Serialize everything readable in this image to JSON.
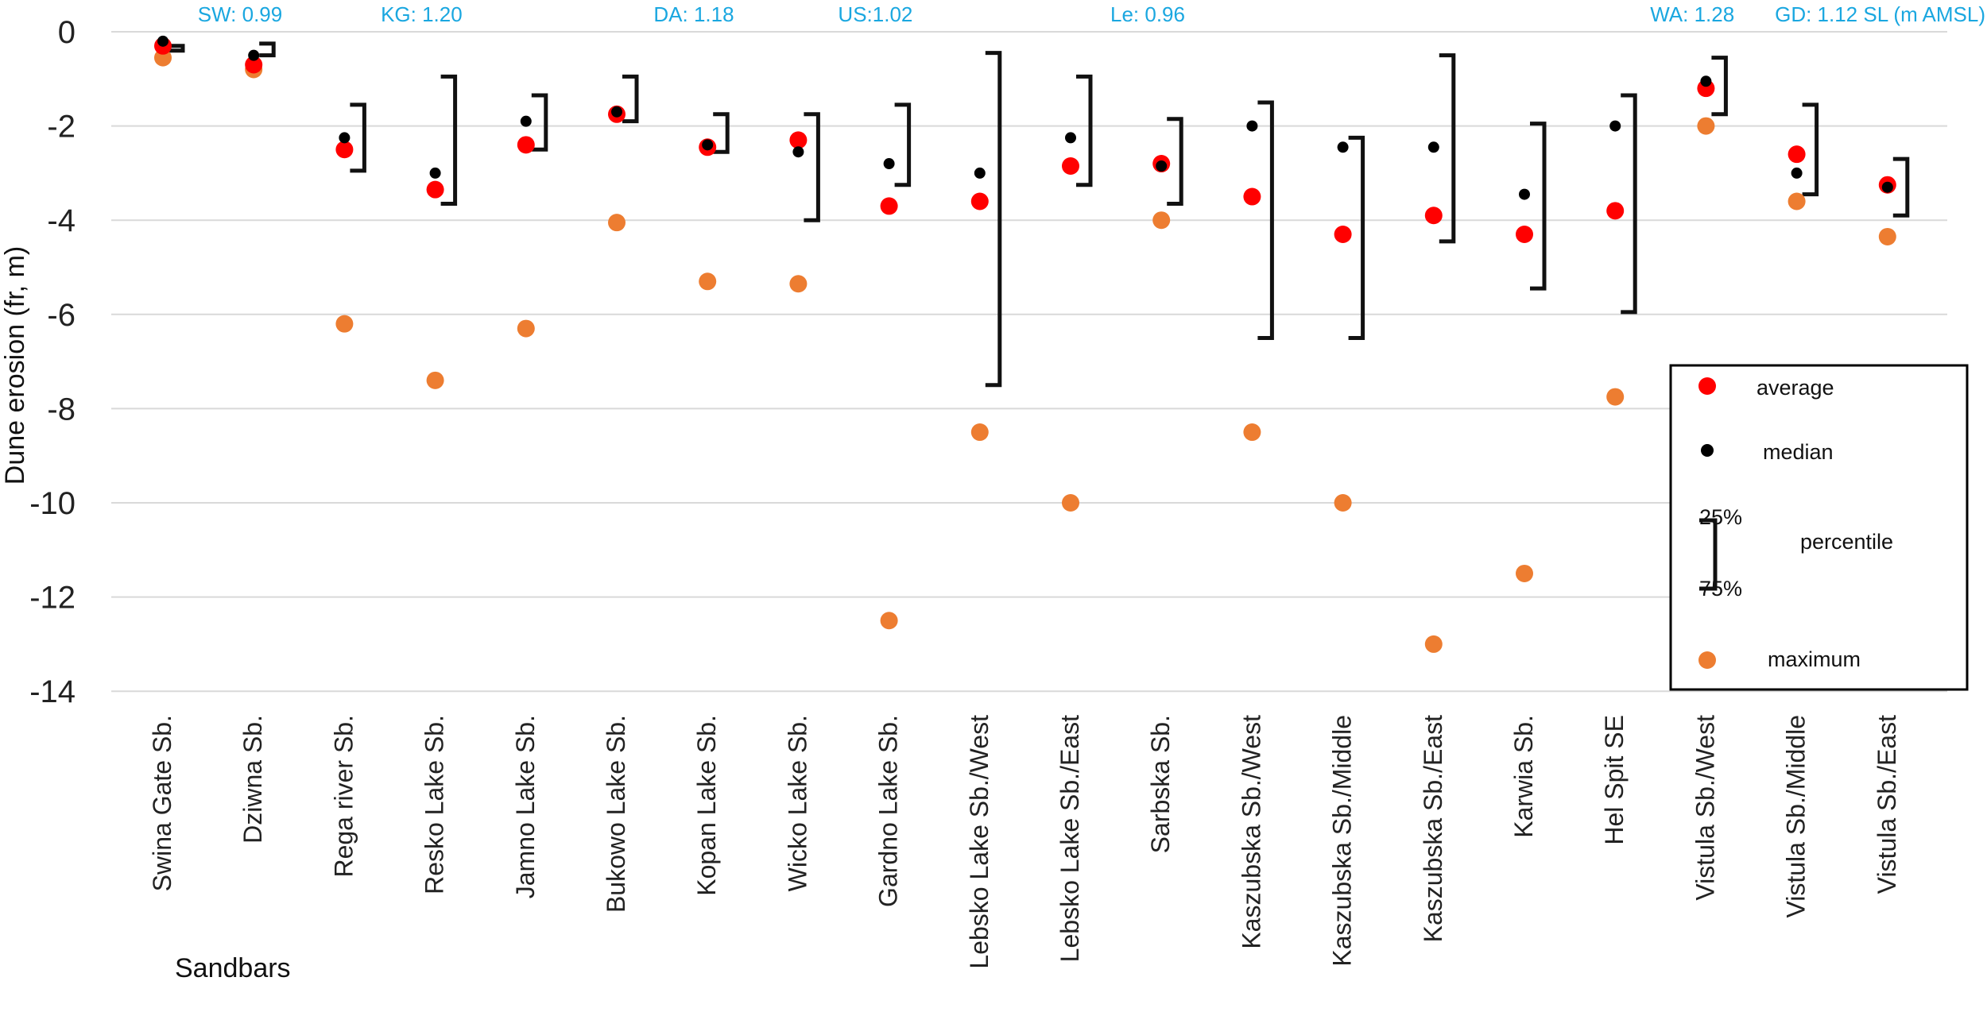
{
  "chart_data": {
    "type": "scatter",
    "xlabel": "Sandbars",
    "ylabel": "Dune erosion (fr, m)",
    "ylim": [
      -14,
      0
    ],
    "yticks": [
      0,
      -2,
      -4,
      -6,
      -8,
      -10,
      -12,
      -14
    ],
    "grid": true,
    "legend_position": "right",
    "categories": [
      "Swina Gate Sb.",
      "Dziwna Sb.",
      "Rega river Sb.",
      "Resko Lake Sb.",
      "Jamno Lake Sb.",
      "Bukowo Lake Sb.",
      "Kopan Lake Sb.",
      "Wicko Lake Sb.",
      "Gardno Lake Sb.",
      "Lebsko Lake Sb./West",
      "Lebsko Lake Sb./East",
      "Sarbska Sb.",
      "Kaszubska Sb./West",
      "Kaszubska  Sb./Middle",
      "Kaszubska Sb./East",
      "Karwia Sb.",
      "Hel Spit SE",
      "Vistula Sb./West",
      "Vistula Sb./Middle",
      "Vistula Sb./East"
    ],
    "series": [
      {
        "name": "average",
        "color": "#ff0000",
        "values": [
          -0.3,
          -0.7,
          -2.5,
          -3.35,
          -2.4,
          -1.75,
          -2.45,
          -2.3,
          -3.7,
          -3.6,
          -2.85,
          -2.8,
          -3.5,
          -4.3,
          -3.9,
          -4.3,
          -3.8,
          -1.2,
          -2.6,
          -3.25
        ]
      },
      {
        "name": "median",
        "color": "#000000",
        "values": [
          -0.2,
          -0.5,
          -2.25,
          -3.0,
          -1.9,
          -1.7,
          -2.4,
          -2.55,
          -2.8,
          -3.0,
          -2.25,
          -2.85,
          -2.0,
          -2.45,
          -2.45,
          -3.45,
          -2.0,
          -1.05,
          -3.0,
          -3.3
        ]
      },
      {
        "name": "maximum",
        "color": "#ed7d31",
        "values": [
          -0.55,
          -0.8,
          -6.2,
          -7.4,
          -6.3,
          -4.05,
          -5.3,
          -5.35,
          -12.5,
          -8.5,
          -10.0,
          -4.0,
          -8.5,
          -10.0,
          -13.0,
          -11.5,
          -7.75,
          -2.0,
          -3.6,
          -4.35
        ]
      },
      {
        "name": "percentile",
        "p25": [
          -0.3,
          -0.25,
          -1.55,
          -0.95,
          -1.35,
          -0.95,
          -1.75,
          -1.75,
          -1.55,
          -0.45,
          -0.95,
          -1.85,
          -1.5,
          -2.25,
          -0.5,
          -1.95,
          -1.35,
          -0.55,
          -1.55,
          -2.7
        ],
        "p75": [
          -0.4,
          -0.5,
          -2.95,
          -3.65,
          -2.5,
          -1.9,
          -2.55,
          -4.0,
          -3.25,
          -7.5,
          -3.25,
          -3.65,
          -6.5,
          -6.5,
          -4.45,
          -5.45,
          -5.95,
          -1.75,
          -3.45,
          -3.9
        ]
      }
    ],
    "annotations": [
      {
        "text": "SW: 0.99",
        "after_category": 0
      },
      {
        "text": "KG: 1.20",
        "after_category": 2
      },
      {
        "text": "DA: 1.18",
        "after_category": 5
      },
      {
        "text": "US:1.02",
        "after_category": 7
      },
      {
        "text": "Le: 0.96",
        "after_category": 10
      },
      {
        "text": "WA:  1.28",
        "after_category": 16
      },
      {
        "text": "GD: 1.12 SL (m AMSL)",
        "after_category": 19
      }
    ]
  },
  "legend": {
    "average": "average",
    "median": "median",
    "p25": "25%",
    "percentile": "percentile",
    "p75": "75%",
    "maximum": "maximum"
  }
}
